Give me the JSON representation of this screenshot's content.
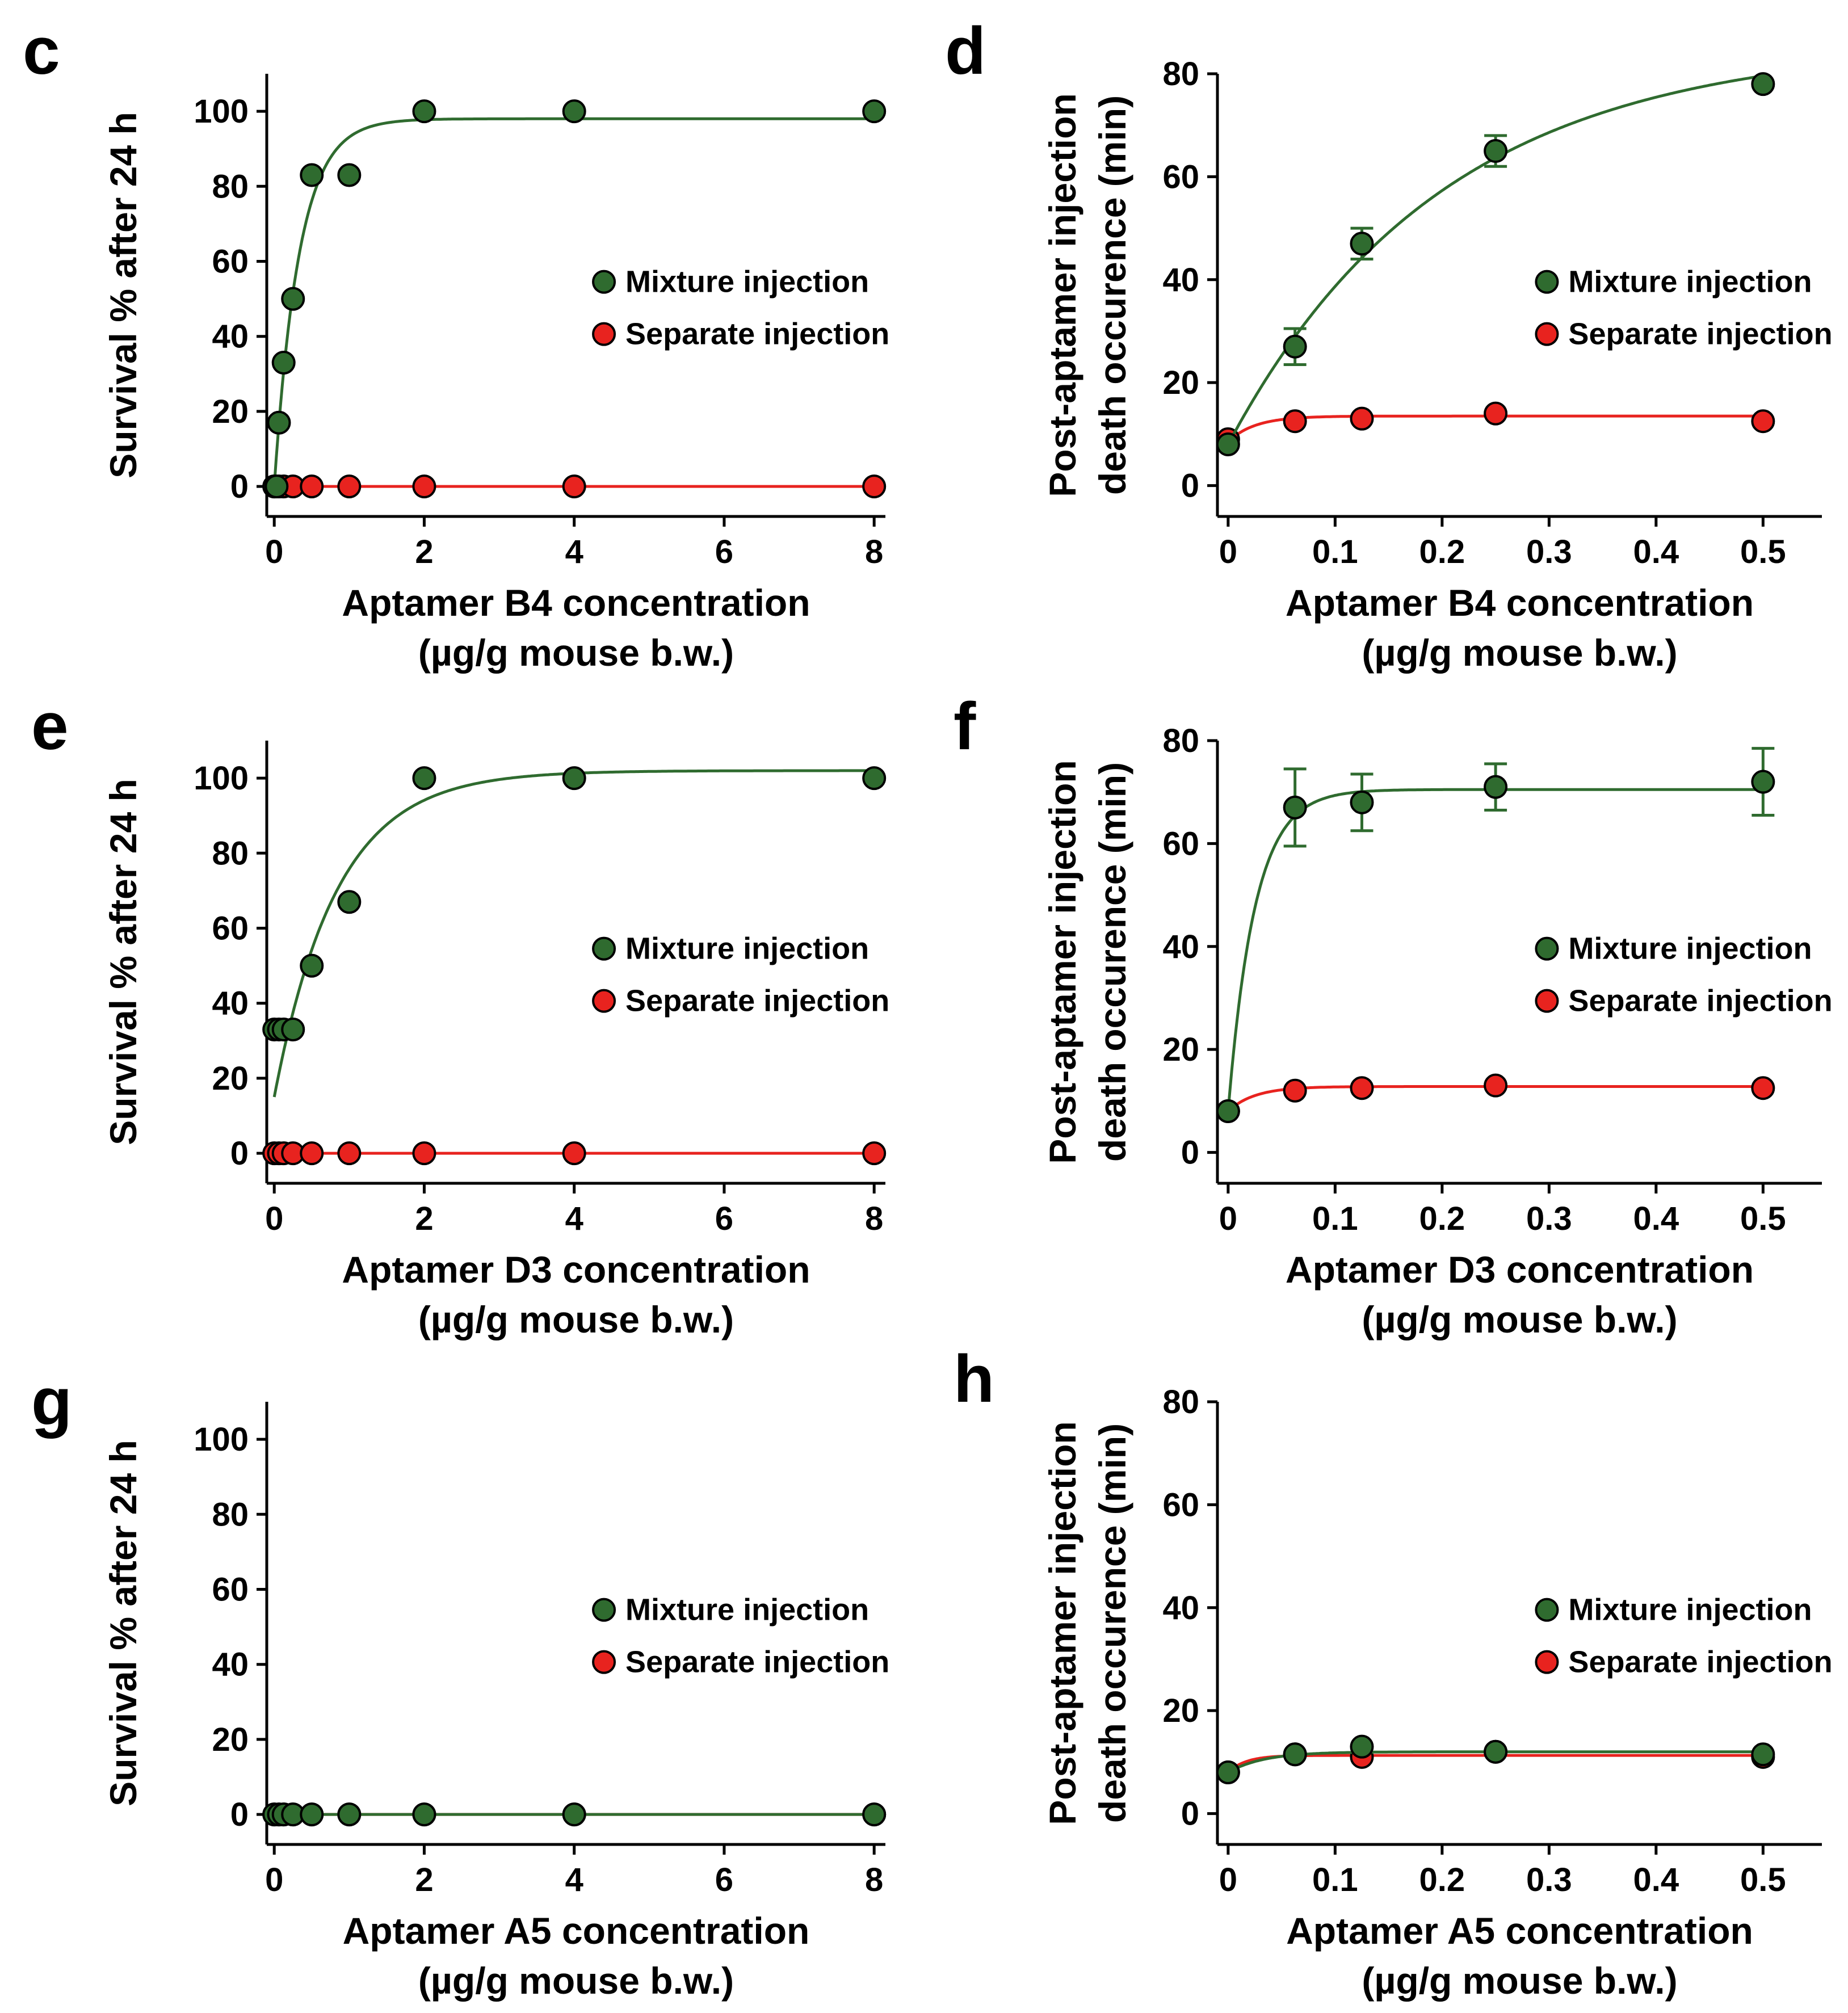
{
  "chart_data": [
    {
      "type": "scatter",
      "panel_id": "c",
      "ylabel": "Survival % after 24 h",
      "xlabel_lines": [
        "Aptamer B4 concentration",
        "(µg/g mouse b.w.)"
      ],
      "xlim": [
        -0.1,
        8.15
      ],
      "ylim": [
        -8,
        110
      ],
      "xticks": [
        0,
        2,
        4,
        6,
        8
      ],
      "yticks": [
        0,
        20,
        40,
        60,
        80,
        100
      ],
      "tick_decimals": 0,
      "legend_position": "center-right",
      "series": [
        {
          "name": "Mixture injection",
          "color": "#2f6b2f",
          "x": [
            0,
            0.03125,
            0.0625,
            0.125,
            0.25,
            0.5,
            1,
            2,
            4,
            8
          ],
          "y": [
            0,
            0,
            17,
            33,
            50,
            83,
            83,
            100,
            100,
            100
          ],
          "fit": {
            "model": "rise",
            "y0": 0,
            "ymax": 98,
            "k": 3.0
          }
        },
        {
          "name": "Separate injection",
          "color": "#e8231f",
          "x": [
            0,
            0.0625,
            0.125,
            0.25,
            0.5,
            1,
            2,
            4,
            8
          ],
          "y": [
            0,
            0,
            0,
            0,
            0,
            0,
            0,
            0,
            0
          ],
          "fit": {
            "model": "flat",
            "y0": 0,
            "ymax": 0,
            "k": 1
          }
        }
      ]
    },
    {
      "type": "scatter",
      "panel_id": "d",
      "ylabel": "Post-aptamer injection death occurence (min)",
      "ylabel_lines": [
        "Post-aptamer injection",
        "death occurence (min)"
      ],
      "xlabel_lines": [
        "Aptamer B4 concentration",
        "(µg/g mouse b.w.)"
      ],
      "xlim": [
        -0.01,
        0.555
      ],
      "ylim": [
        -6,
        80
      ],
      "xticks": [
        0,
        0.1,
        0.2,
        0.3,
        0.4,
        0.5
      ],
      "yticks": [
        0,
        20,
        40,
        60,
        80
      ],
      "tick_decimals": 1,
      "legend_position": "center-right",
      "series": [
        {
          "name": "Mixture injection",
          "color": "#2f6b2f",
          "x": [
            0,
            0.0625,
            0.125,
            0.25,
            0.5
          ],
          "y": [
            8,
            27,
            47,
            65,
            78
          ],
          "err": [
            0,
            3.5,
            3,
            3,
            0
          ],
          "fit": {
            "model": "rise",
            "y0": 8,
            "ymax": 86,
            "k": 5.0
          }
        },
        {
          "name": "Separate injection",
          "color": "#e8231f",
          "x": [
            0,
            0.0625,
            0.125,
            0.25,
            0.5
          ],
          "y": [
            9,
            12.5,
            13,
            14,
            12.5
          ],
          "fit": {
            "model": "rise",
            "y0": 8.5,
            "ymax": 13.5,
            "k": 40
          }
        }
      ]
    },
    {
      "type": "scatter",
      "panel_id": "e",
      "ylabel": "Survival % after 24 h",
      "xlabel_lines": [
        "Aptamer D3 concentration",
        "(µg/g mouse b.w.)"
      ],
      "xlim": [
        -0.1,
        8.15
      ],
      "ylim": [
        -8,
        110
      ],
      "xticks": [
        0,
        2,
        4,
        6,
        8
      ],
      "yticks": [
        0,
        20,
        40,
        60,
        80,
        100
      ],
      "tick_decimals": 0,
      "legend_position": "center-right",
      "series": [
        {
          "name": "Mixture injection",
          "color": "#2f6b2f",
          "x": [
            0,
            0.0625,
            0.125,
            0.25,
            0.5,
            1,
            2,
            4,
            8
          ],
          "y": [
            33,
            33,
            33,
            33,
            50,
            67,
            100,
            100,
            100
          ],
          "fit": {
            "model": "rise",
            "y0": 15,
            "ymax": 102,
            "k": 1.2
          }
        },
        {
          "name": "Separate injection",
          "color": "#e8231f",
          "x": [
            0,
            0.0625,
            0.125,
            0.25,
            0.5,
            1,
            2,
            4,
            8
          ],
          "y": [
            0,
            0,
            0,
            0,
            0,
            0,
            0,
            0,
            0
          ],
          "fit": {
            "model": "flat",
            "y0": 0,
            "ymax": 0,
            "k": 1
          }
        }
      ]
    },
    {
      "type": "scatter",
      "panel_id": "f",
      "ylabel": "Post-aptamer injection death occurence (min)",
      "ylabel_lines": [
        "Post-aptamer injection",
        "death occurence (min)"
      ],
      "xlabel_lines": [
        "Aptamer D3 concentration",
        "(µg/g mouse b.w.)"
      ],
      "xlim": [
        -0.01,
        0.555
      ],
      "ylim": [
        -6,
        80
      ],
      "xticks": [
        0,
        0.1,
        0.2,
        0.3,
        0.4,
        0.5
      ],
      "yticks": [
        0,
        20,
        40,
        60,
        80
      ],
      "tick_decimals": 1,
      "legend_position": "center-right",
      "series": [
        {
          "name": "Mixture injection",
          "color": "#2f6b2f",
          "x": [
            0,
            0.0625,
            0.125,
            0.25,
            0.5
          ],
          "y": [
            8,
            67,
            68,
            71,
            72
          ],
          "err": [
            0,
            7.5,
            5.5,
            4.5,
            6.5
          ],
          "fit": {
            "model": "rise",
            "y0": 8,
            "ymax": 70.5,
            "k": 40
          }
        },
        {
          "name": "Separate injection",
          "color": "#e8231f",
          "x": [
            0,
            0.0625,
            0.125,
            0.25,
            0.5
          ],
          "y": [
            8,
            12,
            12.5,
            13,
            12.5
          ],
          "fit": {
            "model": "rise",
            "y0": 8,
            "ymax": 12.8,
            "k": 40
          }
        }
      ]
    },
    {
      "type": "scatter",
      "panel_id": "g",
      "ylabel": "Survival % after 24 h",
      "xlabel_lines": [
        "Aptamer A5 concentration",
        "(µg/g mouse b.w.)"
      ],
      "xlim": [
        -0.1,
        8.15
      ],
      "ylim": [
        -8,
        110
      ],
      "xticks": [
        0,
        2,
        4,
        6,
        8
      ],
      "yticks": [
        0,
        20,
        40,
        60,
        80,
        100
      ],
      "tick_decimals": 0,
      "legend_position": "center-right",
      "series": [
        {
          "name": "Mixture injection",
          "color": "#2f6b2f",
          "x": [
            0,
            0.0625,
            0.125,
            0.25,
            0.5,
            1,
            2,
            4,
            8
          ],
          "y": [
            0,
            0,
            0,
            0,
            0,
            0,
            0,
            0,
            0
          ],
          "fit": {
            "model": "flat",
            "y0": 0,
            "ymax": 0,
            "k": 1
          }
        },
        {
          "name": "Separate injection",
          "color": "#e8231f",
          "x": [
            0,
            0.0625,
            0.125,
            0.25,
            0.5,
            1,
            2,
            4,
            8
          ],
          "y": [
            0,
            0,
            0,
            0,
            0,
            0,
            0,
            0,
            0
          ],
          "fit": {
            "model": "flat",
            "y0": 0,
            "ymax": 0,
            "k": 1
          }
        }
      ]
    },
    {
      "type": "scatter",
      "panel_id": "h",
      "ylabel": "Post-aptamer injection death occurence (min)",
      "ylabel_lines": [
        "Post-aptamer injection",
        "death occurence (min)"
      ],
      "xlabel_lines": [
        "Aptamer A5 concentration",
        "(µg/g mouse b.w.)"
      ],
      "xlim": [
        -0.01,
        0.555
      ],
      "ylim": [
        -6,
        80
      ],
      "xticks": [
        0,
        0.1,
        0.2,
        0.3,
        0.4,
        0.5
      ],
      "yticks": [
        0,
        20,
        40,
        60,
        80
      ],
      "tick_decimals": 1,
      "legend_position": "center-right",
      "series": [
        {
          "name": "Mixture injection",
          "color": "#2f6b2f",
          "x": [
            0,
            0.0625,
            0.125,
            0.25,
            0.5
          ],
          "y": [
            8,
            11.5,
            13,
            12,
            11.5
          ],
          "fit": {
            "model": "rise",
            "y0": 8,
            "ymax": 12,
            "k": 30
          }
        },
        {
          "name": "Separate injection",
          "color": "#e8231f",
          "x": [
            0,
            0.0625,
            0.125,
            0.25,
            0.5
          ],
          "y": [
            8,
            11.5,
            11,
            12,
            11
          ],
          "fit": {
            "model": "rise",
            "y0": 8,
            "ymax": 11.3,
            "k": 60
          }
        }
      ]
    }
  ]
}
